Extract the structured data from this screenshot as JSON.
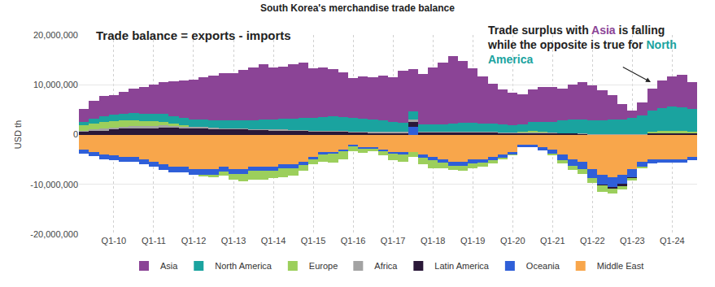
{
  "chart_data": {
    "type": "bar",
    "title": "South Korea's merchandise trade balance",
    "y_label": "USD th",
    "stacked": true,
    "grid": true,
    "legend": "bottom",
    "annotations": [
      {
        "text": "Trade balance = exports - imports"
      },
      {
        "text": "Trade surplus with Asia is falling\nwhile the opposite is true for North\nAmerica"
      }
    ],
    "categories": [
      null,
      null,
      null,
      "Q1-10",
      null,
      null,
      null,
      "Q1-11",
      null,
      null,
      null,
      "Q1-12",
      null,
      null,
      null,
      "Q1-13",
      null,
      null,
      null,
      "Q1-14",
      null,
      null,
      null,
      "Q1-15",
      null,
      null,
      null,
      "Q1-16",
      null,
      null,
      null,
      "Q1-17",
      null,
      null,
      null,
      "Q1-18",
      null,
      null,
      null,
      "Q1-19",
      null,
      null,
      null,
      "Q1-20",
      null,
      null,
      null,
      "Q1-21",
      null,
      null,
      null,
      "Q1-22",
      null,
      null,
      null,
      "Q1-23",
      null,
      null,
      null,
      "Q1-24",
      null,
      null
    ],
    "ylim": [
      -20000000,
      20000000
    ],
    "yticks": [
      {
        "value": -20000000,
        "label": "-20,000,000"
      },
      {
        "value": -10000000,
        "label": "-10,000,000"
      },
      0,
      {
        "value": 10000000,
        "label": "10,000,000"
      },
      {
        "value": 20000000,
        "label": "20,000,000"
      }
    ],
    "series": [
      {
        "name": "Asia",
        "color": "#8b4496",
        "values": [
          2500000,
          3500000,
          4000000,
          4000000,
          4500000,
          5000000,
          5500000,
          6000000,
          6500000,
          7000000,
          7500000,
          8000000,
          8500000,
          9000000,
          9500000,
          9500000,
          10000000,
          10500000,
          11000000,
          10500000,
          10500000,
          11000000,
          11000000,
          10000000,
          10000000,
          9500000,
          9000000,
          8000000,
          8500000,
          8500000,
          9000000,
          9000000,
          10500000,
          8500000,
          10000000,
          11500000,
          12500000,
          13500000,
          12500000,
          11000000,
          9500000,
          8000000,
          7000000,
          6500000,
          6000000,
          6500000,
          7000000,
          7000000,
          6500000,
          7000000,
          7500000,
          7000000,
          6000000,
          5000000,
          3000000,
          1500000,
          2500000,
          4500000,
          5500000,
          6000000,
          6500000,
          5500000
        ]
      },
      {
        "name": "North America",
        "color": "#1aa39f",
        "values": [
          800000,
          1000000,
          1200000,
          1300000,
          1300000,
          1400000,
          1400000,
          1400000,
          1500000,
          1500000,
          1500000,
          1500000,
          1500000,
          1500000,
          1500000,
          1600000,
          1700000,
          1800000,
          2000000,
          2000000,
          2200000,
          2300000,
          2500000,
          2500000,
          2700000,
          2800000,
          2800000,
          2800000,
          2600000,
          2500000,
          2300000,
          2000000,
          1800000,
          1600000,
          1500000,
          1500000,
          1500000,
          1700000,
          1800000,
          1800000,
          1700000,
          1700000,
          1600000,
          1500000,
          1500000,
          1800000,
          2000000,
          2200000,
          2500000,
          2700000,
          2800000,
          2800000,
          2800000,
          2900000,
          3000000,
          3200000,
          3800000,
          4300000,
          4600000,
          4800000,
          4800000,
          4500000
        ]
      },
      {
        "name": "Europe",
        "color": "#9ccf5c",
        "values": [
          1000000,
          1200000,
          1300000,
          1300000,
          1200000,
          1200000,
          1000000,
          1000000,
          800000,
          500000,
          300000,
          0,
          -300000,
          -500000,
          -800000,
          -1200000,
          -1500000,
          -1800000,
          -1800000,
          -1500000,
          -1800000,
          -1500000,
          -1200000,
          -1000000,
          -1500000,
          -1800000,
          -1500000,
          -1000000,
          -800000,
          -600000,
          -800000,
          -1200000,
          -1500000,
          -1000000,
          -1300000,
          -1500000,
          -1000000,
          -800000,
          -1000000,
          -900000,
          -700000,
          -600000,
          -400000,
          -200000,
          200000,
          300000,
          200000,
          -300000,
          -700000,
          -800000,
          -900000,
          -1000000,
          -1300000,
          -1000000,
          -800000,
          -500000,
          -200000,
          200000,
          400000,
          500000,
          400000,
          300000
        ]
      },
      {
        "name": "Africa",
        "color": "#a3a3a3",
        "values": [
          300000,
          300000,
          400000,
          400000,
          400000,
          400000,
          400000,
          400000,
          400000,
          300000,
          300000,
          300000,
          300000,
          300000,
          300000,
          200000,
          200000,
          200000,
          200000,
          200000,
          200000,
          200000,
          200000,
          200000,
          200000,
          200000,
          200000,
          200000,
          200000,
          200000,
          200000,
          200000,
          200000,
          500000,
          200000,
          100000,
          100000,
          100000,
          100000,
          100000,
          100000,
          100000,
          100000,
          100000,
          100000,
          100000,
          100000,
          100000,
          100000,
          100000,
          100000,
          100000,
          100000,
          100000,
          100000,
          100000,
          100000,
          100000,
          100000,
          100000,
          100000,
          100000
        ]
      },
      {
        "name": "Latin America",
        "color": "#2a1838",
        "values": [
          500000,
          700000,
          800000,
          1000000,
          1200000,
          1300000,
          1300000,
          1300000,
          1400000,
          1400000,
          1300000,
          1200000,
          1200000,
          1100000,
          1000000,
          1000000,
          1000000,
          900000,
          900000,
          800000,
          800000,
          700000,
          700000,
          600000,
          600000,
          600000,
          500000,
          400000,
          400000,
          300000,
          300000,
          300000,
          300000,
          1000000,
          400000,
          400000,
          400000,
          400000,
          400000,
          400000,
          400000,
          400000,
          300000,
          300000,
          300000,
          300000,
          300000,
          300000,
          200000,
          200000,
          100000,
          0,
          -200000,
          -400000,
          -500000,
          -300000,
          0,
          200000,
          200000,
          200000,
          200000,
          200000
        ]
      },
      {
        "name": "Oceania",
        "color": "#2f5fd8",
        "values": [
          -800000,
          -800000,
          -900000,
          -900000,
          -900000,
          -1000000,
          -1000000,
          -1000000,
          -1100000,
          -1100000,
          -1100000,
          -1100000,
          -1100000,
          -1000000,
          -1000000,
          -900000,
          -900000,
          -800000,
          -800000,
          -700000,
          -700000,
          -700000,
          -600000,
          -500000,
          -500000,
          -400000,
          -400000,
          -400000,
          -400000,
          -300000,
          -300000,
          -400000,
          -500000,
          1500000,
          -600000,
          -700000,
          -700000,
          -800000,
          -800000,
          -800000,
          -700000,
          -700000,
          -600000,
          -500000,
          -500000,
          -600000,
          -700000,
          -900000,
          -1100000,
          -1300000,
          -1500000,
          -1700000,
          -2000000,
          -2000000,
          -1800000,
          -1500000,
          -1000000,
          -800000,
          -700000,
          -700000,
          -700000,
          -600000
        ]
      },
      {
        "name": "Middle East",
        "color": "#f8a64b",
        "values": [
          -3000000,
          -3500000,
          -4000000,
          -4200000,
          -4500000,
          -4500000,
          -5000000,
          -5500000,
          -6000000,
          -6500000,
          -6500000,
          -7000000,
          -7000000,
          -7000000,
          -6500000,
          -7000000,
          -7000000,
          -6500000,
          -6500000,
          -6500000,
          -6000000,
          -6000000,
          -5500000,
          -4500000,
          -3500000,
          -3500000,
          -3000000,
          -2000000,
          -2500000,
          -2500000,
          -3000000,
          -3500000,
          -3500000,
          -3500000,
          -4000000,
          -4500000,
          -5000000,
          -5500000,
          -5500000,
          -5000000,
          -5000000,
          -4500000,
          -4000000,
          -3500000,
          -2000000,
          -2000000,
          -2500000,
          -3000000,
          -4000000,
          -5000000,
          -5500000,
          -7000000,
          -8000000,
          -8500000,
          -8000000,
          -7000000,
          -5500000,
          -5000000,
          -5000000,
          -5000000,
          -5000000,
          -4500000
        ]
      }
    ]
  }
}
